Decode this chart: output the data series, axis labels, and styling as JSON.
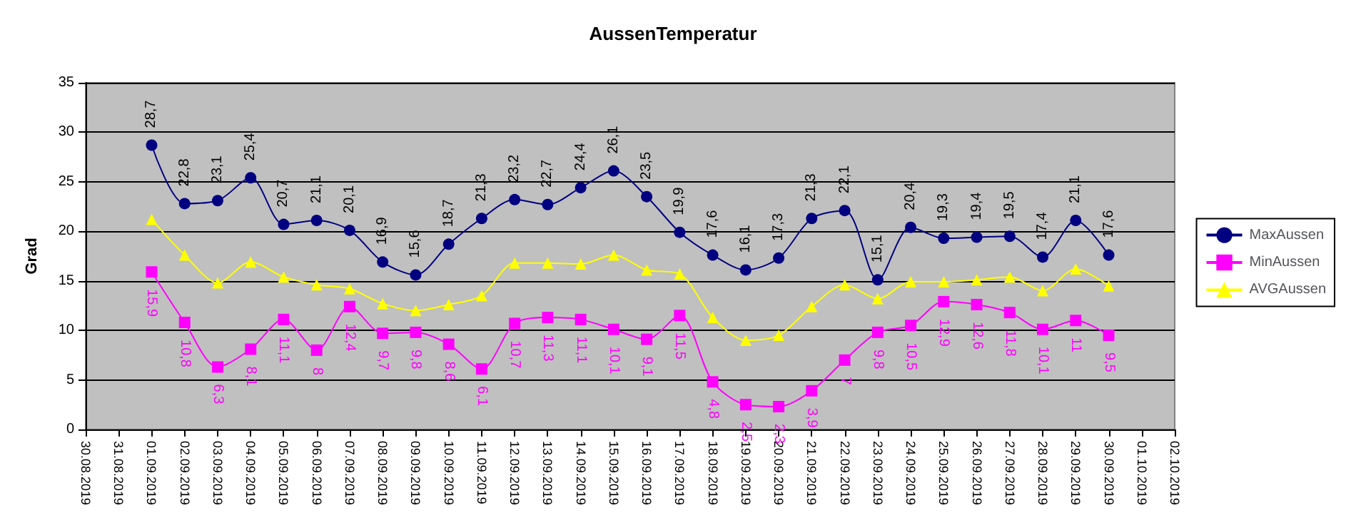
{
  "chart_data": {
    "type": "line",
    "title": "AussenTemperatur",
    "ylabel": "Grad",
    "categories": [
      "30.08.2019",
      "31.08.2019",
      "01.09.2019",
      "02.09.2019",
      "03.09.2019",
      "04.09.2019",
      "05.09.2019",
      "06.09.2019",
      "07.09.2019",
      "08.09.2019",
      "09.09.2019",
      "10.09.2019",
      "11.09.2019",
      "12.09.2019",
      "13.09.2019",
      "14.09.2019",
      "15.09.2019",
      "16.09.2019",
      "17.09.2019",
      "18.09.2019",
      "19.09.2019",
      "20.09.2019",
      "21.09.2019",
      "22.09.2019",
      "23.09.2019",
      "24.09.2019",
      "25.09.2019",
      "26.09.2019",
      "27.09.2019",
      "28.09.2019",
      "29.09.2019",
      "30.09.2019",
      "01.10.2019",
      "02.10.2019"
    ],
    "series": [
      {
        "name": "MaxAussen",
        "color": "#000080",
        "marker": "circle",
        "values": [
          null,
          null,
          28.7,
          22.8,
          23.1,
          25.4,
          20.7,
          21.1,
          20.1,
          16.9,
          15.6,
          18.7,
          21.3,
          23.2,
          22.7,
          24.4,
          26.1,
          23.5,
          19.9,
          17.6,
          16.1,
          17.3,
          21.3,
          22.1,
          15.1,
          20.4,
          19.3,
          19.4,
          19.5,
          17.4,
          21.1,
          17.6,
          null,
          null
        ],
        "value_labels": [
          null,
          null,
          "28,7",
          "22,8",
          "23,1",
          "25,4",
          "20,7",
          "21,1",
          "20,1",
          "16,9",
          "15,6",
          "18,7",
          "21,3",
          "23,2",
          "22,7",
          "24,4",
          "26,1",
          "23,5",
          "19,9",
          "17,6",
          "16,1",
          "17,3",
          "21,3",
          "22,1",
          "15,1",
          "20,4",
          "19,3",
          "19,4",
          "19,5",
          "17,4",
          "21,1",
          "17,6",
          null,
          null
        ]
      },
      {
        "name": "MinAussen",
        "color": "#ff00ff",
        "marker": "square",
        "values": [
          null,
          null,
          15.9,
          10.8,
          6.3,
          8.1,
          11.1,
          8,
          12.4,
          9.7,
          9.8,
          8.6,
          6.1,
          10.7,
          11.3,
          11.1,
          10.1,
          9.1,
          11.5,
          4.8,
          2.5,
          2.3,
          3.9,
          7,
          9.8,
          10.5,
          12.9,
          12.6,
          11.8,
          10.1,
          11,
          9.5,
          null,
          null
        ],
        "value_labels": [
          null,
          null,
          "15,9",
          "10,8",
          "6,3",
          "8,1",
          "11,1",
          "8",
          "12,4",
          "9,7",
          "9,8",
          "8,6",
          "6,1",
          "10,7",
          "11,3",
          "11,1",
          "10,1",
          "9,1",
          "11,5",
          "4,8",
          "2,5",
          "2,3",
          "3,9",
          "7",
          "9,8",
          "10,5",
          "12,9",
          "12,6",
          "11,8",
          "10,1",
          "11",
          "9,5",
          null,
          null
        ]
      },
      {
        "name": "AVGAussen",
        "color": "#ffff00",
        "marker": "triangle",
        "values": [
          null,
          null,
          21.2,
          17.6,
          14.8,
          16.9,
          15.4,
          14.6,
          14.2,
          12.7,
          12.0,
          12.6,
          13.5,
          16.8,
          16.8,
          16.7,
          17.6,
          16.1,
          15.7,
          11.3,
          9.0,
          9.5,
          12.4,
          14.6,
          13.2,
          14.9,
          14.9,
          15.1,
          15.4,
          14.0,
          16.2,
          14.5,
          null,
          null
        ]
      }
    ],
    "ylim": [
      0,
      35
    ],
    "yticks": [
      0,
      5,
      10,
      15,
      20,
      25,
      30,
      35
    ],
    "grid": "y",
    "legend": "right"
  }
}
